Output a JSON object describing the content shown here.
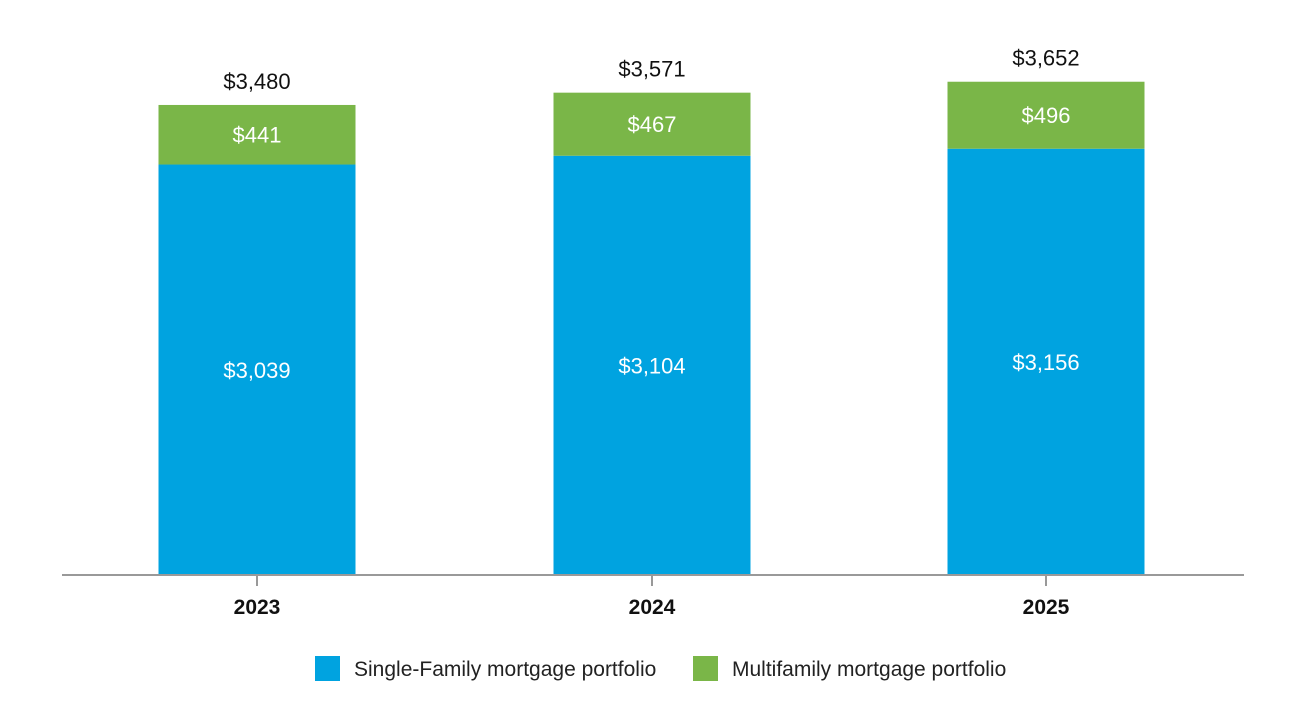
{
  "chart_data": {
    "type": "bar",
    "stacked": true,
    "categories": [
      "2023",
      "2024",
      "2025"
    ],
    "series": [
      {
        "name": "Single-Family mortgage portfolio",
        "values": [
          3039,
          3104,
          3156
        ],
        "labels": [
          "$3,039",
          "$3,104",
          "$3,156"
        ],
        "color": "#00a3e0"
      },
      {
        "name": "Multifamily mortgage portfolio",
        "values": [
          441,
          467,
          496
        ],
        "labels": [
          "$441",
          "$467",
          "$496"
        ],
        "color": "#7ab648"
      }
    ],
    "totals": {
      "values": [
        3480,
        3571,
        3652
      ],
      "labels": [
        "$3,480",
        "$3,571",
        "$3,652"
      ]
    },
    "ylim": [
      0,
      3650
    ],
    "grid": false,
    "legend_position": "bottom",
    "axis_color": "#999999"
  }
}
